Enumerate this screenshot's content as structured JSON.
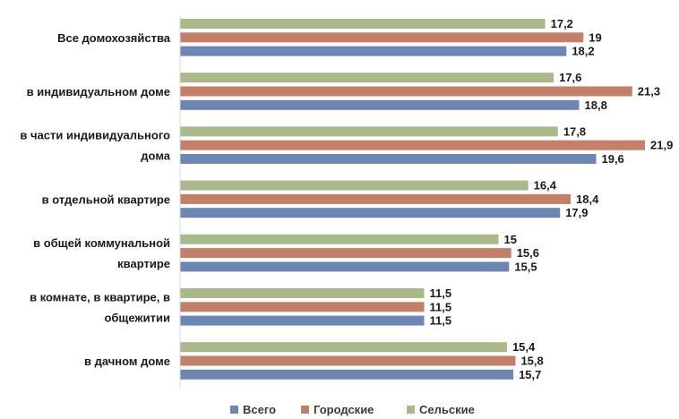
{
  "chart_data": {
    "type": "bar",
    "orientation": "horizontal",
    "categories": [
      [
        "Все домохозяйства"
      ],
      [
        "в индивидуальном доме"
      ],
      [
        "в части индивидуального",
        "дома"
      ],
      [
        "в отдельной квартире"
      ],
      [
        "в общей коммунальной",
        "квартире"
      ],
      [
        "в комнате, в квартире, в",
        "общежитии"
      ],
      [
        "в дачном доме"
      ]
    ],
    "series": [
      {
        "name": "Сельские",
        "color": "#a9b98a",
        "values": [
          17.2,
          17.6,
          17.8,
          16.4,
          15,
          11.5,
          15.4
        ],
        "labels": [
          "17,2",
          "17,6",
          "17,8",
          "16,4",
          "15",
          "11,5",
          "15,4"
        ]
      },
      {
        "name": "Городские",
        "color": "#c47f68",
        "values": [
          19,
          21.3,
          21.9,
          18.4,
          15.6,
          11.5,
          15.8
        ],
        "labels": [
          "19",
          "21,3",
          "21,9",
          "18,4",
          "15,6",
          "11,5",
          "15,8"
        ]
      },
      {
        "name": "Всего",
        "color": "#6c86b6",
        "values": [
          18.2,
          18.8,
          19.6,
          17.9,
          15.5,
          11.5,
          15.7
        ],
        "labels": [
          "18,2",
          "18,8",
          "19,6",
          "17,9",
          "15,5",
          "11,5",
          "15,7"
        ]
      }
    ],
    "legend": {
      "placement": "bottom",
      "order": [
        "Всего",
        "Городские",
        "Сельские"
      ]
    },
    "grid": false,
    "xlim": [
      0,
      21.9
    ]
  }
}
